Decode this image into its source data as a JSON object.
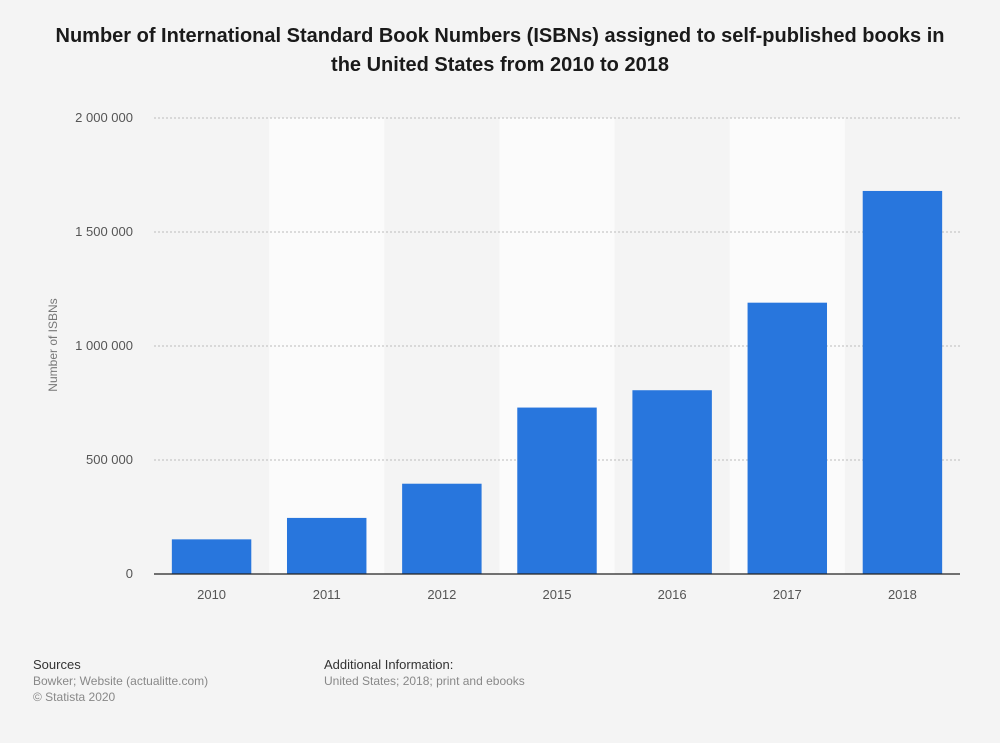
{
  "title": "Number of International Standard Book Numbers (ISBNs) assigned to self-published books in the United States from 2010 to 2018",
  "chart_data": {
    "type": "bar",
    "title": "Number of International Standard Book Numbers (ISBNs) assigned to self-published books in the United States from 2010 to 2018",
    "xlabel": "",
    "ylabel": "Number of ISBNs",
    "categories": [
      "2010",
      "2011",
      "2012",
      "2015",
      "2016",
      "2017",
      "2018"
    ],
    "values": [
      152000,
      246000,
      396000,
      730000,
      806000,
      1190000,
      1680000
    ],
    "ylim": [
      0,
      2000000
    ],
    "yticks": [
      0,
      500000,
      1000000,
      1500000,
      2000000
    ],
    "ytick_labels": [
      "0",
      "500 000",
      "1 000 000",
      "1 500 000",
      "2 000 000"
    ],
    "grid": true,
    "bar_color": "#2876dd",
    "band_color": "#fbfbfb"
  },
  "footer": {
    "sources_heading": "Sources",
    "sources_lines": [
      "Bowker; Website (actualitte.com)",
      "© Statista 2020"
    ],
    "additional_heading": "Additional Information:",
    "additional_lines": [
      "United States; 2018; print and ebooks"
    ]
  }
}
